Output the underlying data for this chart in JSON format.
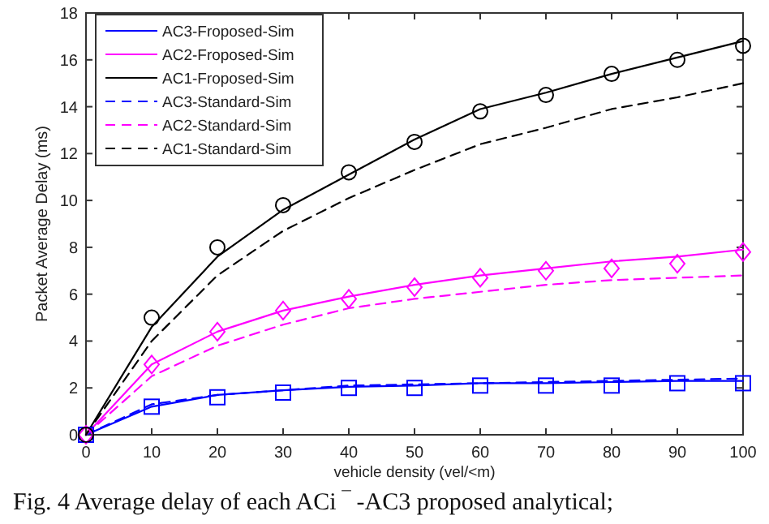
{
  "chart_data": {
    "type": "line",
    "xlabel": "vehicle density (vel/<m)",
    "ylabel": "Packet Average Delay (ms)",
    "x": [
      0,
      10,
      20,
      30,
      40,
      50,
      60,
      70,
      80,
      90,
      100
    ],
    "xlim": [
      0,
      100
    ],
    "xticks": [
      0,
      10,
      20,
      30,
      40,
      50,
      60,
      70,
      80,
      90,
      100
    ],
    "ylim": [
      0,
      18
    ],
    "yticks": [
      0,
      2,
      4,
      6,
      8,
      10,
      12,
      14,
      16,
      18
    ],
    "grid": false,
    "legend": "top left",
    "marker": "none",
    "annotations": [
      "Fig. 4 Average delay of each ACi ‾ -AC3 proposed analytical;"
    ],
    "series": [
      {
        "name": "AC3-Froposed-Sim",
        "color": "#0000ff",
        "line_style": "solid",
        "values": [
          0,
          1.2,
          1.7,
          1.9,
          2.05,
          2.1,
          2.2,
          2.2,
          2.25,
          2.3,
          2.3
        ]
      },
      {
        "name": "AC2-Froposed-Sim",
        "color": "#ff00ff",
        "line_style": "solid",
        "values": [
          0,
          3.0,
          4.4,
          5.3,
          5.9,
          6.4,
          6.8,
          7.1,
          7.4,
          7.6,
          7.9
        ]
      },
      {
        "name": "AC1-Froposed-Sim",
        "color": "#000000",
        "line_style": "solid",
        "values": [
          0,
          4.6,
          7.6,
          9.6,
          11.1,
          12.6,
          13.9,
          14.6,
          15.4,
          16.1,
          16.8
        ]
      },
      {
        "name": "AC3-Standard-Sim",
        "color": "#0000ff",
        "line_style": "dashed",
        "values": [
          0,
          1.3,
          1.7,
          1.9,
          2.1,
          2.15,
          2.2,
          2.25,
          2.3,
          2.35,
          2.4
        ]
      },
      {
        "name": "AC2-Standard-Sim",
        "color": "#ff00ff",
        "line_style": "dashed",
        "values": [
          0,
          2.5,
          3.8,
          4.7,
          5.4,
          5.8,
          6.1,
          6.4,
          6.6,
          6.7,
          6.8
        ]
      },
      {
        "name": "AC1-Standard-Sim",
        "color": "#000000",
        "line_style": "dashed",
        "values": [
          0,
          4.0,
          6.8,
          8.7,
          10.1,
          11.3,
          12.4,
          13.1,
          13.9,
          14.4,
          15.0
        ]
      },
      {
        "type": "scatter",
        "marker": "square",
        "color": "#0000ff",
        "values": [
          0,
          1.2,
          1.6,
          1.8,
          2.0,
          2.0,
          2.1,
          2.1,
          2.1,
          2.2,
          2.2
        ]
      },
      {
        "type": "scatter",
        "marker": "diamond",
        "color": "#ff00ff",
        "values": [
          0,
          3.0,
          4.4,
          5.3,
          5.8,
          6.3,
          6.7,
          7.0,
          7.1,
          7.3,
          7.8
        ]
      },
      {
        "type": "scatter",
        "marker": "circle",
        "color": "#000000",
        "values": [
          0,
          5.0,
          8.0,
          9.8,
          11.2,
          12.5,
          13.8,
          14.5,
          15.4,
          16.0,
          16.6
        ]
      }
    ]
  }
}
